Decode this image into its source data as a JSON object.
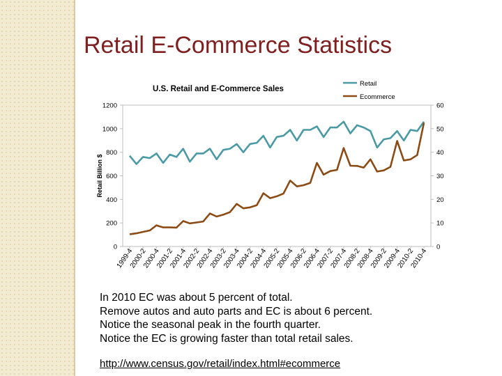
{
  "slide": {
    "title": "Retail E-Commerce Statistics"
  },
  "notes": [
    "In 2010 EC was about 5 percent of total.",
    "Remove autos and auto parts and EC is about 6 percent.",
    "Notice the seasonal peak in the fourth quarter.",
    "Notice the EC is growing faster than total retail sales."
  ],
  "link": {
    "text": "http://www.census.gov/retail/index.html#ecommerce"
  },
  "colors": {
    "retail": "#4a9aa5",
    "ecommerce": "#8c4b15",
    "title": "#7f1f1f",
    "band": "#f3ead2"
  },
  "chart_data": {
    "type": "line",
    "title": "U.S. Retail and E-Commerce Sales",
    "ylabel": "Retail Billion $",
    "ylim": [
      0,
      1200
    ],
    "y2lim": [
      0,
      60
    ],
    "yticks": [
      0,
      200,
      400,
      600,
      800,
      1000,
      1200
    ],
    "y2ticks": [
      0,
      10,
      20,
      30,
      40,
      50,
      60
    ],
    "legend_position": "top-right",
    "grid": false,
    "x_tick_labels": [
      "1999-4",
      "2000-2",
      "2000-4",
      "2001-2",
      "2001-4",
      "2002-2",
      "2002-4",
      "2003-2",
      "2003-4",
      "2004-2",
      "2004-4",
      "2005-2",
      "2005-4",
      "2006-2",
      "2006-4",
      "2007-2",
      "2007-4",
      "2008-2",
      "2008-4",
      "2009-2",
      "2009-4",
      "2010-2",
      "2010-4"
    ],
    "x": [
      "1999-4",
      "2000-1",
      "2000-2",
      "2000-3",
      "2000-4",
      "2001-1",
      "2001-2",
      "2001-3",
      "2001-4",
      "2002-1",
      "2002-2",
      "2002-3",
      "2002-4",
      "2003-1",
      "2003-2",
      "2003-3",
      "2003-4",
      "2004-1",
      "2004-2",
      "2004-3",
      "2004-4",
      "2005-1",
      "2005-2",
      "2005-3",
      "2005-4",
      "2006-1",
      "2006-2",
      "2006-3",
      "2006-4",
      "2007-1",
      "2007-2",
      "2007-3",
      "2007-4",
      "2008-1",
      "2008-2",
      "2008-3",
      "2008-4",
      "2009-1",
      "2009-2",
      "2009-3",
      "2009-4",
      "2010-1",
      "2010-2",
      "2010-3",
      "2010-4"
    ],
    "series": [
      {
        "name": "Retail",
        "axis": "left",
        "values": [
          770,
          700,
          760,
          750,
          790,
          710,
          780,
          760,
          830,
          720,
          790,
          790,
          830,
          740,
          820,
          830,
          870,
          800,
          870,
          880,
          940,
          840,
          930,
          940,
          990,
          900,
          990,
          990,
          1020,
          930,
          1010,
          1010,
          1060,
          960,
          1030,
          1010,
          980,
          840,
          910,
          920,
          980,
          900,
          990,
          980,
          1060
        ]
      },
      {
        "name": "Ecommerce",
        "axis": "right",
        "values": [
          5.2,
          5.6,
          6.2,
          6.8,
          9.0,
          8.1,
          8.1,
          8.0,
          10.8,
          9.8,
          10.2,
          10.6,
          14.0,
          12.7,
          13.5,
          14.6,
          18.1,
          16.2,
          16.6,
          17.5,
          22.6,
          20.5,
          21.3,
          22.5,
          28.0,
          25.5,
          26.0,
          27.0,
          35.5,
          30.5,
          32.0,
          32.5,
          41.8,
          34.3,
          34.2,
          33.5,
          37.0,
          31.8,
          32.3,
          33.8,
          44.8,
          36.5,
          37.0,
          38.8,
          52.5
        ]
      }
    ]
  }
}
